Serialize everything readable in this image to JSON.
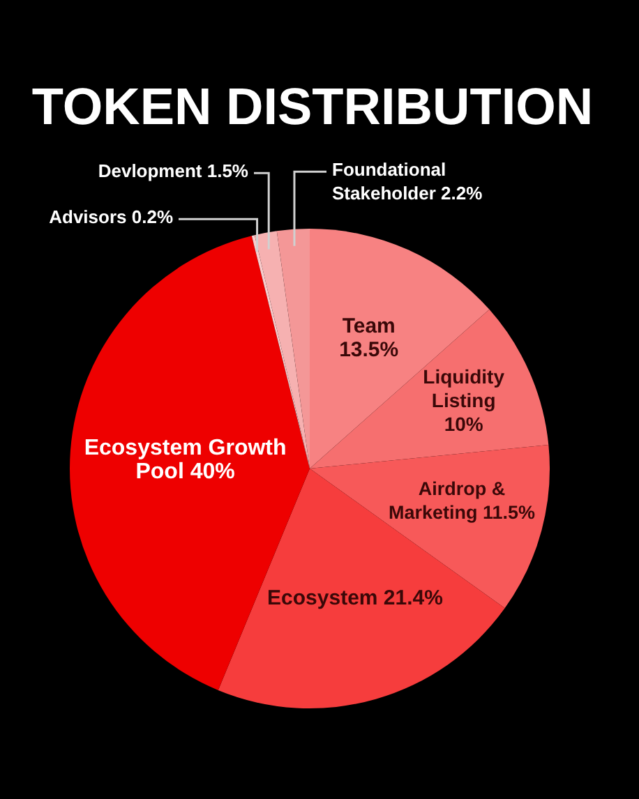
{
  "chart_data": {
    "type": "pie",
    "title": "TOKEN DISTRIBUTION",
    "categories": [
      "Team",
      "Liquidity Listing",
      "Airdrop & Marketing",
      "Ecosystem",
      "Ecosystem Growth Pool",
      "Advisors",
      "Devlopment",
      "Foundational Stakeholder"
    ],
    "values": [
      13.5,
      10,
      11.5,
      21.4,
      40,
      0.2,
      1.5,
      2.2
    ],
    "value_labels": [
      "13.5%",
      "10%",
      "11.5%",
      "21.4%",
      "40%",
      "0.2%",
      "1.5%",
      "2.2%"
    ],
    "colors": [
      "#f78282",
      "#f66f6f",
      "#f75959",
      "#f63d3d",
      "#ee0000",
      "#f9cccc",
      "#f6b1b1",
      "#f49797"
    ]
  }
}
